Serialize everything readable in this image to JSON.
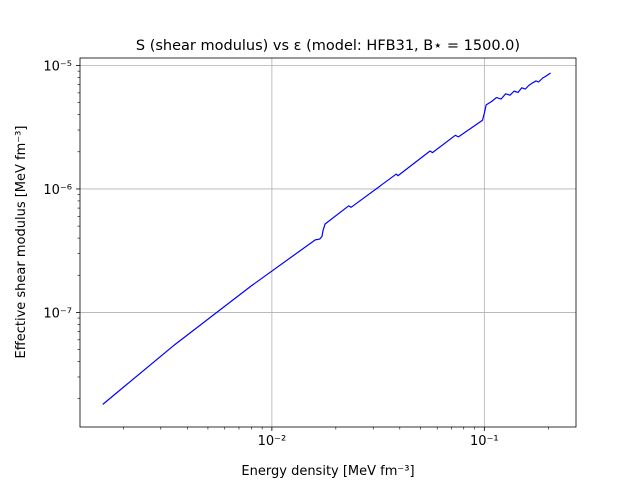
{
  "chart_data": {
    "type": "line",
    "title": "S (shear modulus) vs ε (model: HFB31, B⋆ = 1500.0)",
    "xlabel": "Energy density [MeV fm⁻³]",
    "ylabel": "Effective shear modulus [MeV fm⁻³]",
    "xscale": "log",
    "yscale": "log",
    "xlim": [
      0.00125,
      0.27
    ],
    "ylim": [
      1.18e-08,
      1.15e-05
    ],
    "xticks": [
      {
        "value": 0.01,
        "label": "10⁻²"
      },
      {
        "value": 0.1,
        "label": "10⁻¹"
      }
    ],
    "yticks": [
      {
        "value": 1e-07,
        "label": "10⁻⁷"
      },
      {
        "value": 1e-06,
        "label": "10⁻⁶"
      },
      {
        "value": 1e-05,
        "label": "10⁻⁵"
      }
    ],
    "grid": true,
    "line_color": "#0000ff",
    "series": [
      {
        "x": [
          0.0016,
          0.0035,
          0.008,
          0.016,
          0.0168,
          0.0172,
          0.0174,
          0.0178,
          0.023,
          0.0236,
          0.0385,
          0.0392,
          0.0555,
          0.057,
          0.073,
          0.0755,
          0.098,
          0.1,
          0.102,
          0.108,
          0.114,
          0.12,
          0.126,
          0.132,
          0.138,
          0.144,
          0.15,
          0.156,
          0.162,
          0.168,
          0.175,
          0.18,
          0.188,
          0.195,
          0.205
        ],
        "y": [
          1.8e-08,
          5.5e-08,
          1.64e-07,
          3.87e-07,
          3.93e-07,
          4.12e-07,
          4.6e-07,
          5.2e-07,
          7.3e-07,
          7.1e-07,
          1.32e-06,
          1.28e-06,
          2.03e-06,
          1.97e-06,
          2.72e-06,
          2.64e-06,
          3.6e-06,
          4.1e-06,
          4.8e-06,
          5.1e-06,
          5.5e-06,
          5.35e-06,
          5.9e-06,
          5.75e-06,
          6.2e-06,
          6.05e-06,
          6.6e-06,
          6.45e-06,
          6.9e-06,
          7.2e-06,
          7.5e-06,
          7.35e-06,
          7.9e-06,
          8.2e-06,
          8.7e-06
        ]
      }
    ]
  }
}
